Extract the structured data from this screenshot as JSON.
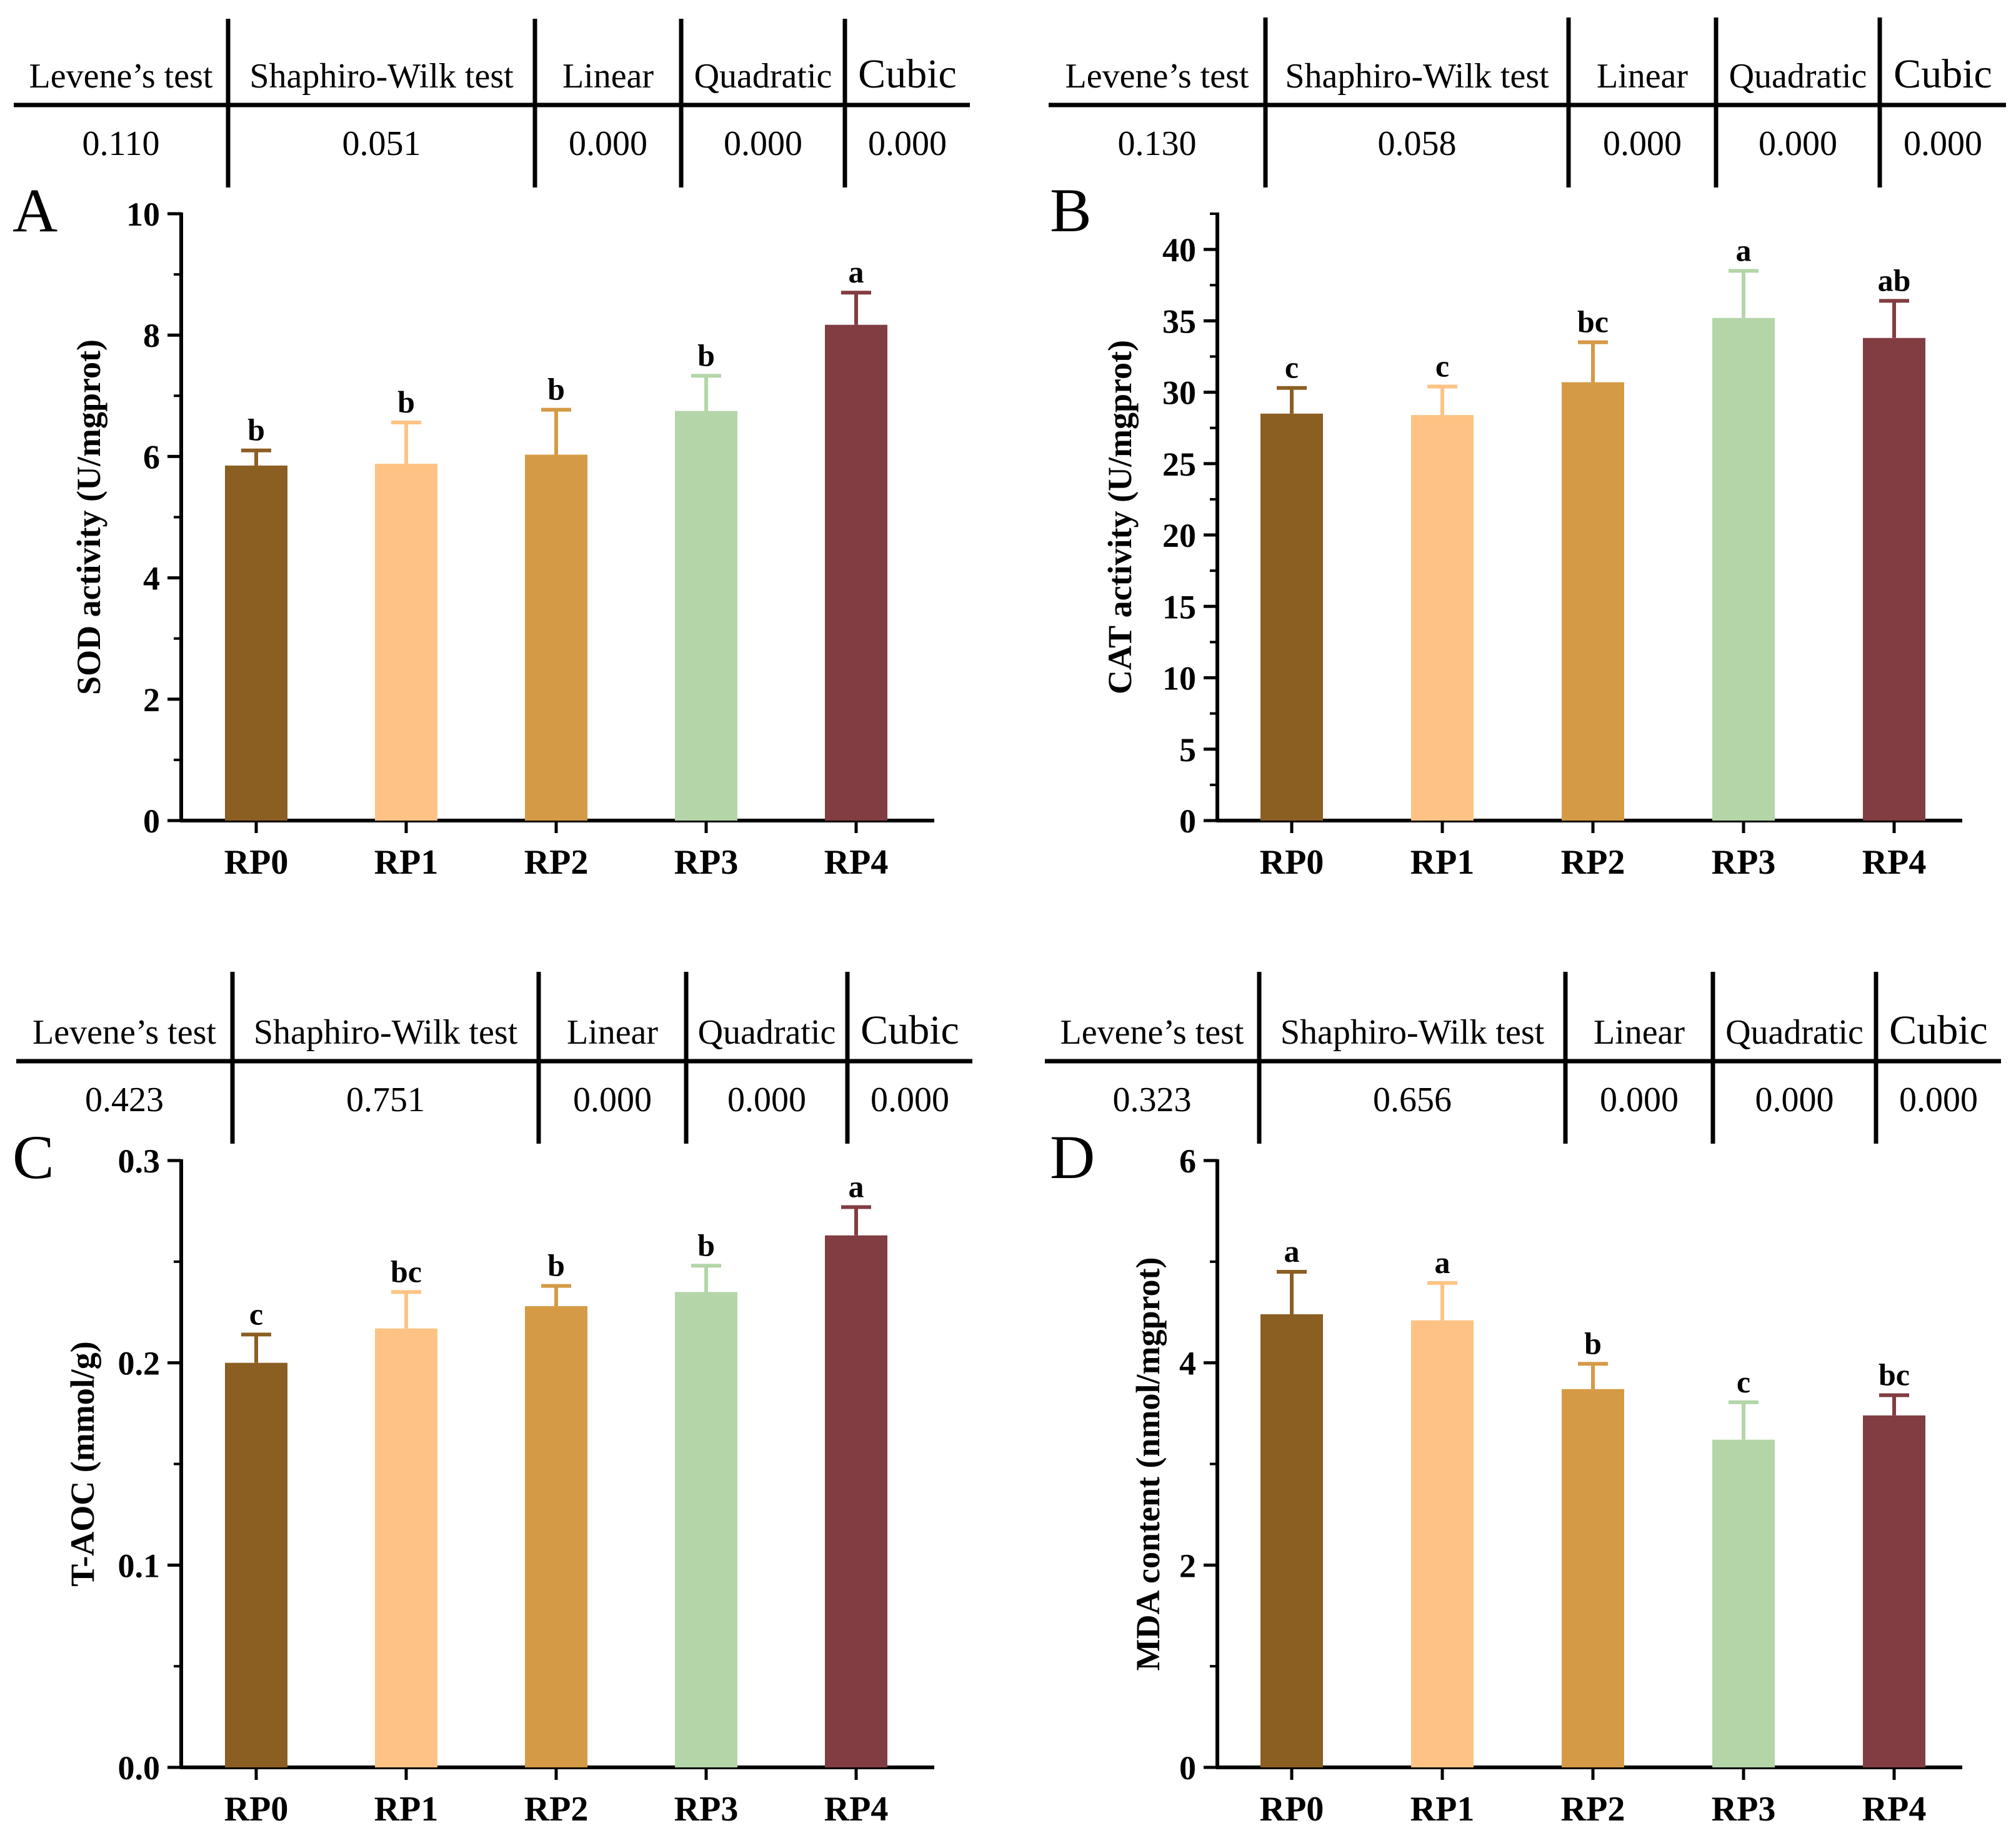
{
  "colors": {
    "RP0": "#8B5E22",
    "RP1": "#FEC384",
    "RP2": "#D59A45",
    "RP3": "#B3D5A8",
    "RP4": "#823D42",
    "axis": "#000000"
  },
  "chart_data": [
    {
      "panel": "A",
      "type": "bar",
      "categories": [
        "RP0",
        "RP1",
        "RP2",
        "RP3",
        "RP4"
      ],
      "values": [
        5.85,
        5.88,
        6.03,
        6.75,
        8.17
      ],
      "errors": [
        0.25,
        0.68,
        0.74,
        0.58,
        0.53
      ],
      "letters": [
        "b",
        "b",
        "b",
        "b",
        "a"
      ],
      "ylabel": "SOD activity (U/mgprot)",
      "ylim": [
        0,
        10
      ],
      "yticks": [
        0,
        2,
        4,
        6,
        8,
        10
      ],
      "ytick_labels": [
        "0",
        "2",
        "4",
        "6",
        "8",
        "10"
      ],
      "stats": {
        "headers": [
          "Levene’s test",
          "Shaphiro-Wilk test",
          "Linear",
          "Quadratic",
          "Cubic"
        ],
        "values": [
          "0.110",
          "0.051",
          "0.000",
          "0.000",
          "0.000"
        ]
      }
    },
    {
      "panel": "B",
      "type": "bar",
      "categories": [
        "RP0",
        "RP1",
        "RP2",
        "RP3",
        "RP4"
      ],
      "values": [
        28.5,
        28.4,
        30.7,
        35.2,
        33.8
      ],
      "errors": [
        1.8,
        2.0,
        2.8,
        3.3,
        2.6
      ],
      "letters": [
        "c",
        "c",
        "bc",
        "a",
        "ab"
      ],
      "ylabel": "CAT activity (U/mgprot)",
      "ylim": [
        0,
        42.5
      ],
      "yticks": [
        0,
        5,
        10,
        15,
        20,
        25,
        30,
        35,
        40
      ],
      "ytick_labels": [
        "0",
        "5",
        "10",
        "15",
        "20",
        "25",
        "30",
        "35",
        "40"
      ],
      "stats": {
        "headers": [
          "Levene’s test",
          "Shaphiro-Wilk test",
          "Linear",
          "Quadratic",
          "Cubic"
        ],
        "values": [
          "0.130",
          "0.058",
          "0.000",
          "0.000",
          "0.000"
        ]
      }
    },
    {
      "panel": "C",
      "type": "bar",
      "categories": [
        "RP0",
        "RP1",
        "RP2",
        "RP3",
        "RP4"
      ],
      "values": [
        0.2,
        0.217,
        0.228,
        0.235,
        0.263
      ],
      "errors": [
        0.014,
        0.018,
        0.01,
        0.013,
        0.014
      ],
      "letters": [
        "c",
        "bc",
        "b",
        "b",
        "a"
      ],
      "ylabel": "T-AOC (mmol/g)",
      "ylim": [
        0,
        0.3
      ],
      "yticks": [
        0,
        0.1,
        0.2,
        0.3
      ],
      "ytick_labels": [
        "0.0",
        "0.1",
        "0.2",
        "0.3"
      ],
      "stats": {
        "headers": [
          "Levene’s test",
          "Shaphiro-Wilk test",
          "Linear",
          "Quadratic",
          "Cubic"
        ],
        "values": [
          "0.423",
          "0.751",
          "0.000",
          "0.000",
          "0.000"
        ]
      }
    },
    {
      "panel": "D",
      "type": "bar",
      "categories": [
        "RP0",
        "RP1",
        "RP2",
        "RP3",
        "RP4"
      ],
      "values": [
        4.48,
        4.42,
        3.74,
        3.24,
        3.48
      ],
      "errors": [
        0.42,
        0.37,
        0.25,
        0.37,
        0.2
      ],
      "letters": [
        "a",
        "a",
        "b",
        "c",
        "bc"
      ],
      "ylabel": "MDA content (nmol/mgprot)",
      "ylim": [
        0,
        6
      ],
      "yticks": [
        0,
        2,
        4,
        6
      ],
      "ytick_labels": [
        "0",
        "2",
        "4",
        "6"
      ],
      "stats": {
        "headers": [
          "Levene’s test",
          "Shaphiro-Wilk test",
          "Linear",
          "Quadratic",
          "Cubic"
        ],
        "values": [
          "0.323",
          "0.656",
          "0.000",
          "0.000",
          "0.000"
        ]
      }
    }
  ]
}
